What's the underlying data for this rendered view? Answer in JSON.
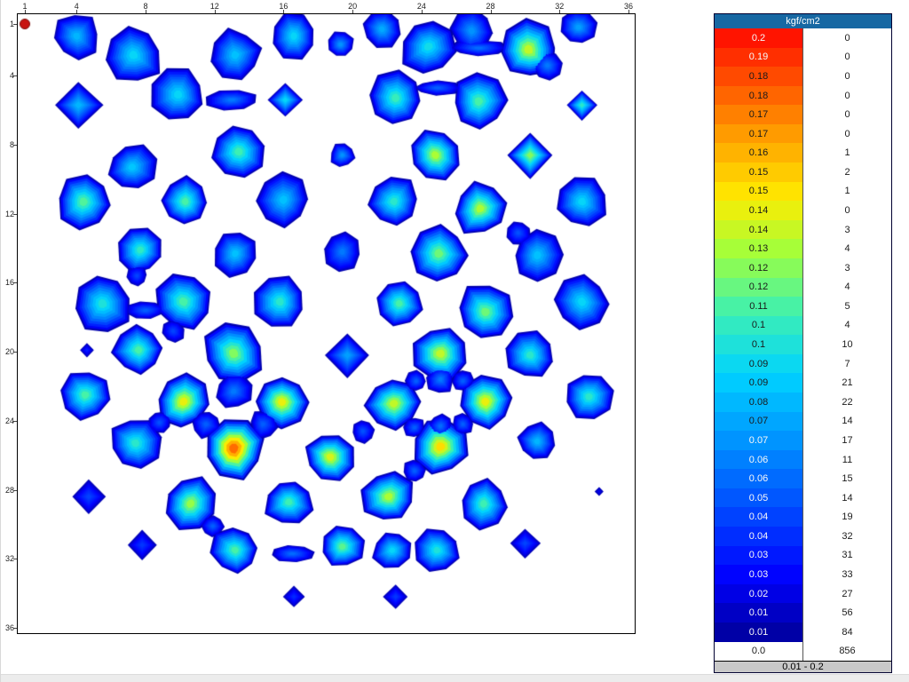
{
  "colors": {
    "page_bg": "#ffffff",
    "plot_border": "#000000",
    "legend_header_bg": "#1768a3",
    "legend_footer_bg": "#c8c8c8",
    "contour_edge": "#000086",
    "marker_red": "#c81410"
  },
  "chart_data": {
    "type": "heatmap",
    "title": "",
    "unit_label": "kgf/cm2",
    "range_label": "0.01 - 0.2",
    "x_ticks": [
      1,
      4,
      8,
      12,
      16,
      20,
      24,
      28,
      32,
      36
    ],
    "y_ticks": [
      1,
      4,
      8,
      12,
      16,
      20,
      24,
      28,
      32,
      36
    ],
    "grid_min": 1,
    "grid_max": 36,
    "value_min": 0.0,
    "value_max": 0.2,
    "marker": {
      "x": 1,
      "y": 1,
      "radius": 5.5,
      "color": "#c81410"
    },
    "colormap": [
      [
        0.0,
        [
          0,
          0,
          134
        ]
      ],
      [
        0.12,
        [
          0,
          0,
          255
        ]
      ],
      [
        0.33,
        [
          0,
          140,
          255
        ]
      ],
      [
        0.45,
        [
          0,
          210,
          255
        ]
      ],
      [
        0.55,
        [
          60,
          240,
          180
        ]
      ],
      [
        0.65,
        [
          160,
          255,
          60
        ]
      ],
      [
        0.74,
        [
          255,
          235,
          0
        ]
      ],
      [
        0.85,
        [
          255,
          150,
          0
        ]
      ],
      [
        1.0,
        [
          255,
          20,
          0
        ]
      ]
    ],
    "legend_rows": [
      {
        "value": "0.2",
        "count": "0"
      },
      {
        "value": "0.19",
        "count": "0"
      },
      {
        "value": "0.18",
        "count": "0"
      },
      {
        "value": "0.18",
        "count": "0"
      },
      {
        "value": "0.17",
        "count": "0"
      },
      {
        "value": "0.17",
        "count": "0"
      },
      {
        "value": "0.16",
        "count": "1"
      },
      {
        "value": "0.15",
        "count": "2"
      },
      {
        "value": "0.15",
        "count": "1"
      },
      {
        "value": "0.14",
        "count": "0"
      },
      {
        "value": "0.14",
        "count": "3"
      },
      {
        "value": "0.13",
        "count": "4"
      },
      {
        "value": "0.12",
        "count": "3"
      },
      {
        "value": "0.12",
        "count": "4"
      },
      {
        "value": "0.11",
        "count": "5"
      },
      {
        "value": "0.1",
        "count": "4"
      },
      {
        "value": "0.1",
        "count": "10"
      },
      {
        "value": "0.09",
        "count": "7"
      },
      {
        "value": "0.09",
        "count": "21"
      },
      {
        "value": "0.08",
        "count": "22"
      },
      {
        "value": "0.07",
        "count": "14"
      },
      {
        "value": "0.07",
        "count": "17"
      },
      {
        "value": "0.06",
        "count": "11"
      },
      {
        "value": "0.06",
        "count": "15"
      },
      {
        "value": "0.05",
        "count": "14"
      },
      {
        "value": "0.04",
        "count": "19"
      },
      {
        "value": "0.04",
        "count": "32"
      },
      {
        "value": "0.03",
        "count": "31"
      },
      {
        "value": "0.03",
        "count": "33"
      },
      {
        "value": "0.02",
        "count": "27"
      },
      {
        "value": "0.01",
        "count": "56"
      },
      {
        "value": "0.01",
        "count": "84"
      },
      {
        "value": "0.0",
        "count": "856"
      }
    ],
    "blobs": [
      [
        4.0,
        1.7,
        26,
        0.4,
        8
      ],
      [
        7.3,
        2.8,
        33,
        0.46,
        8
      ],
      [
        13.2,
        2.8,
        29,
        0.42,
        8
      ],
      [
        16.6,
        1.7,
        26,
        0.46,
        8
      ],
      [
        19.3,
        2.2,
        15,
        0.34,
        8
      ],
      [
        21.7,
        1.3,
        21,
        0.38,
        8
      ],
      [
        24.4,
        2.3,
        32,
        0.48,
        8
      ],
      [
        26.9,
        1.4,
        24,
        0.34,
        8
      ],
      [
        27.3,
        2.4,
        18,
        0.28,
        8,
        1.8,
        0.5
      ],
      [
        30.2,
        2.5,
        33,
        0.68,
        8
      ],
      [
        31.3,
        3.4,
        16,
        0.3,
        8
      ],
      [
        33.1,
        1.2,
        20,
        0.36,
        8
      ],
      [
        4.1,
        5.7,
        27,
        0.4,
        4
      ],
      [
        9.9,
        5.1,
        30,
        0.46,
        8
      ],
      [
        13.0,
        5.4,
        20,
        0.3,
        8,
        1.5,
        0.6
      ],
      [
        16.1,
        5.4,
        19,
        0.46,
        4
      ],
      [
        22.5,
        5.3,
        30,
        0.54,
        8
      ],
      [
        24.9,
        4.7,
        16,
        0.26,
        8,
        1.7,
        0.5
      ],
      [
        27.3,
        5.5,
        30,
        0.56,
        8
      ],
      [
        33.3,
        5.7,
        17,
        0.52,
        4
      ],
      [
        13.4,
        8.4,
        29,
        0.55,
        8
      ],
      [
        7.2,
        9.3,
        27,
        0.43,
        8
      ],
      [
        24.8,
        8.6,
        30,
        0.66,
        8
      ],
      [
        30.3,
        8.6,
        26,
        0.62,
        4
      ],
      [
        19.4,
        8.6,
        14,
        0.34,
        8
      ],
      [
        4.4,
        11.3,
        29,
        0.57,
        8
      ],
      [
        10.3,
        11.3,
        28,
        0.56,
        8
      ],
      [
        16.0,
        11.2,
        29,
        0.42,
        8
      ],
      [
        22.4,
        11.3,
        28,
        0.52,
        8
      ],
      [
        27.4,
        11.7,
        30,
        0.66,
        8
      ],
      [
        33.3,
        11.3,
        28,
        0.46,
        8
      ],
      [
        29.6,
        13.1,
        14,
        0.24,
        8
      ],
      [
        7.7,
        14.1,
        27,
        0.53,
        8
      ],
      [
        13.2,
        14.3,
        26,
        0.42,
        8
      ],
      [
        19.4,
        14.2,
        22,
        0.3,
        8
      ],
      [
        25.0,
        14.3,
        30,
        0.6,
        8
      ],
      [
        30.7,
        14.4,
        27,
        0.42,
        8
      ],
      [
        7.5,
        15.6,
        12,
        0.22,
        8
      ],
      [
        5.5,
        17.2,
        33,
        0.5,
        8
      ],
      [
        8.0,
        17.6,
        15,
        0.26,
        8,
        1.5,
        0.7
      ],
      [
        10.2,
        17.1,
        31,
        0.56,
        8
      ],
      [
        15.8,
        17.1,
        30,
        0.52,
        8
      ],
      [
        22.7,
        17.2,
        28,
        0.56,
        8
      ],
      [
        27.7,
        17.7,
        32,
        0.6,
        8
      ],
      [
        33.3,
        17.1,
        29,
        0.46,
        8
      ],
      [
        4.6,
        19.9,
        8,
        0.16,
        4
      ],
      [
        7.6,
        19.9,
        28,
        0.56,
        8
      ],
      [
        9.6,
        18.8,
        13,
        0.22,
        8
      ],
      [
        13.1,
        20.1,
        34,
        0.62,
        8
      ],
      [
        19.7,
        20.2,
        25,
        0.36,
        4
      ],
      [
        25.1,
        20.1,
        31,
        0.68,
        8
      ],
      [
        30.3,
        20.2,
        27,
        0.52,
        8
      ],
      [
        4.5,
        22.5,
        29,
        0.56,
        8
      ],
      [
        10.2,
        22.9,
        30,
        0.72,
        8
      ],
      [
        15.9,
        22.9,
        28,
        0.72,
        8
      ],
      [
        22.4,
        23.0,
        31,
        0.68,
        8
      ],
      [
        27.7,
        22.9,
        30,
        0.72,
        8
      ],
      [
        33.7,
        22.6,
        27,
        0.52,
        8
      ],
      [
        13.1,
        22.3,
        20,
        0.3,
        8
      ],
      [
        8.8,
        24.1,
        13,
        0.24,
        8
      ],
      [
        11.5,
        24.2,
        16,
        0.26,
        8
      ],
      [
        14.8,
        24.2,
        16,
        0.26,
        8
      ],
      [
        25.1,
        21.6,
        16,
        0.3,
        8
      ],
      [
        23.7,
        21.7,
        12,
        0.26,
        8
      ],
      [
        26.4,
        21.7,
        12,
        0.26,
        8
      ],
      [
        20.6,
        24.6,
        13,
        0.24,
        8
      ],
      [
        7.4,
        25.3,
        28,
        0.52,
        8
      ],
      [
        13.1,
        25.6,
        34,
        0.9,
        8
      ],
      [
        18.7,
        26.1,
        27,
        0.7,
        8
      ],
      [
        25.1,
        25.5,
        32,
        0.76,
        8
      ],
      [
        30.7,
        25.2,
        21,
        0.4,
        8
      ],
      [
        25.1,
        24.3,
        14,
        0.28,
        8
      ],
      [
        23.6,
        24.4,
        12,
        0.26,
        8
      ],
      [
        26.4,
        24.2,
        12,
        0.26,
        8
      ],
      [
        23.6,
        26.9,
        13,
        0.26,
        8
      ],
      [
        34.3,
        28.1,
        5,
        0.1,
        4
      ],
      [
        4.7,
        28.4,
        19,
        0.22,
        4
      ],
      [
        10.6,
        28.8,
        30,
        0.64,
        8
      ],
      [
        16.3,
        28.7,
        27,
        0.55,
        8
      ],
      [
        22.1,
        28.4,
        30,
        0.66,
        8
      ],
      [
        27.6,
        28.8,
        28,
        0.55,
        8
      ],
      [
        11.9,
        30.1,
        13,
        0.26,
        8
      ],
      [
        7.8,
        31.2,
        17,
        0.2,
        4
      ],
      [
        13.2,
        31.5,
        27,
        0.56,
        8
      ],
      [
        16.5,
        31.7,
        15,
        0.28,
        8,
        1.6,
        0.6
      ],
      [
        19.4,
        31.3,
        24,
        0.58,
        8
      ],
      [
        22.3,
        31.5,
        22,
        0.46,
        8
      ],
      [
        24.9,
        31.5,
        24,
        0.5,
        8
      ],
      [
        30.0,
        31.1,
        17,
        0.22,
        4
      ],
      [
        16.6,
        34.2,
        12,
        0.18,
        4
      ],
      [
        22.5,
        34.2,
        14,
        0.2,
        4
      ]
    ]
  }
}
